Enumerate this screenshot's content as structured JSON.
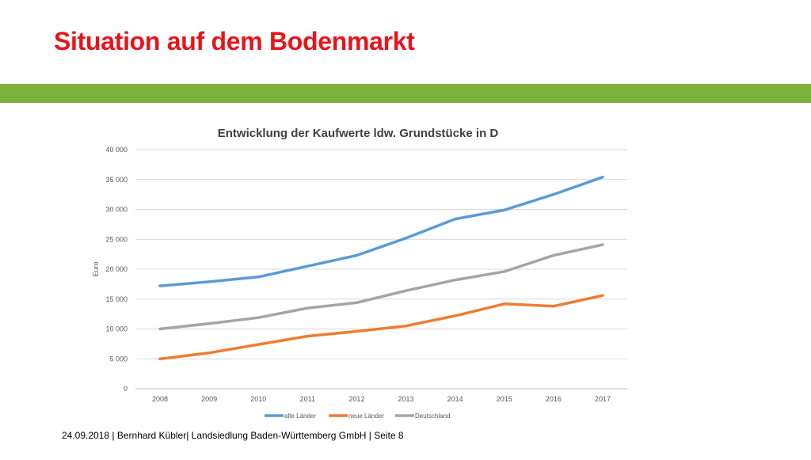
{
  "slide": {
    "title": "Situation auf dem Bodenmarkt",
    "footer": "24.09.2018 | Bernhard Kübler| Landsiedlung Baden-Württemberg GmbH | Seite 8",
    "title_color": "#e8141b",
    "band_color": "#7cb13c"
  },
  "chart_data": {
    "type": "line",
    "title": "Entwicklung der Kaufwerte ldw. Grundstücke in D",
    "xlabel": "",
    "ylabel": "Euro",
    "categories": [
      "2008",
      "2009",
      "2010",
      "2011",
      "2012",
      "2013",
      "2014",
      "2015",
      "2016",
      "2017"
    ],
    "ylim": [
      0,
      40000
    ],
    "yticks": [
      0,
      5000,
      10000,
      15000,
      20000,
      25000,
      30000,
      35000,
      40000
    ],
    "ytick_labels": [
      "0",
      "5 000",
      "10 000",
      "15 000",
      "20 000",
      "25 000",
      "30 000",
      "35 000",
      "40 000"
    ],
    "grid": true,
    "legend_position": "bottom",
    "series": [
      {
        "name": "alte Länder",
        "color": "#5b9bd5",
        "values": [
          17200,
          17900,
          18700,
          20500,
          22300,
          25200,
          28400,
          29900,
          32500,
          35400
        ]
      },
      {
        "name": "neue Länder",
        "color": "#ed7d31",
        "values": [
          5000,
          6000,
          7400,
          8800,
          9600,
          10500,
          12200,
          14200,
          13800,
          15600
        ]
      },
      {
        "name": "Deutschland",
        "color": "#a5a5a5",
        "values": [
          10000,
          10900,
          11900,
          13500,
          14400,
          16400,
          18200,
          19600,
          22300,
          24100
        ]
      }
    ]
  }
}
